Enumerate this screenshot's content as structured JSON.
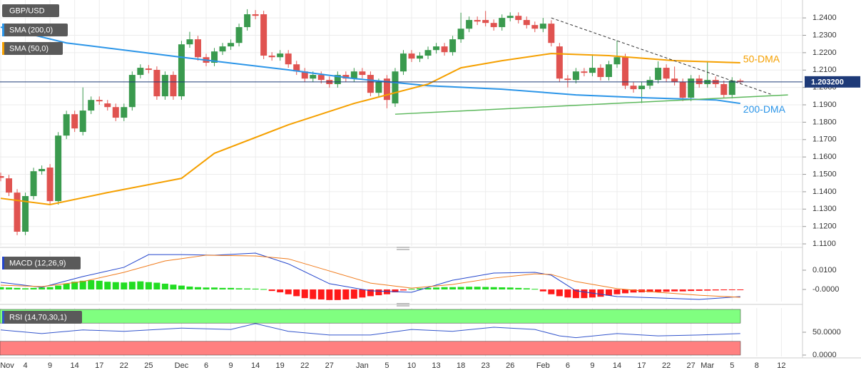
{
  "chart_data": [
    {
      "type": "candlestick",
      "title": "GBP/USD",
      "categories": [
        "Nov",
        null,
        null,
        "4",
        null,
        null,
        "9",
        null,
        null,
        "14",
        null,
        null,
        "17",
        null,
        null,
        "22",
        null,
        null,
        "25",
        null,
        null,
        null,
        "Dec",
        null,
        null,
        "6",
        null,
        null,
        "9",
        null,
        null,
        "14",
        null,
        null,
        "19",
        null,
        null,
        "22",
        null,
        null,
        "27",
        null,
        null,
        null,
        "Jan",
        null,
        null,
        "5",
        null,
        null,
        "10",
        null,
        null,
        "13",
        null,
        null,
        "18",
        null,
        null,
        "23",
        null,
        null,
        "26",
        null,
        null,
        null,
        "Feb",
        null,
        null,
        "6",
        null,
        null,
        "9",
        null,
        null,
        "14",
        null,
        null,
        "17",
        null,
        null,
        "22",
        null,
        null,
        "27",
        null,
        "Mar",
        null,
        null,
        "5",
        null,
        null,
        "8",
        null,
        null,
        "12"
      ],
      "open": [
        1.149,
        1.1477,
        1.1395,
        1.117,
        1.1375,
        1.1518,
        1.1539,
        1.1346,
        1.1723,
        1.1846,
        1.1744,
        1.1867,
        1.1928,
        1.1908,
        1.1887,
        1.1826,
        1.1887,
        1.2072,
        1.2109,
        1.2101,
        1.1949,
        1.2072,
        1.1949,
        1.2248,
        1.2277,
        1.2174,
        1.2142,
        1.2207,
        1.2236,
        1.2256,
        1.2347,
        1.2421,
        1.2421,
        1.2183,
        1.2174,
        1.2195,
        1.2133,
        1.2092,
        1.2051,
        1.2072,
        1.2043,
        1.2019,
        1.2072,
        1.2051,
        1.2092,
        1.2072,
        1.1969,
        1.2051,
        1.1908,
        1.2092,
        1.2195,
        1.2166,
        1.2183,
        1.2215,
        1.2236,
        1.2203,
        1.2277,
        1.2338,
        1.2388,
        1.2388,
        1.2371,
        1.2347,
        1.24,
        1.2412,
        1.2388,
        1.2359,
        1.2338,
        1.2367,
        1.2236,
        1.2051,
        1.2043,
        1.2092,
        1.2084,
        1.2113,
        1.206,
        1.2133,
        1.2174,
        1.201,
        1.199,
        1.201,
        1.2043,
        1.2113,
        1.2051,
        1.2031,
        1.1941,
        1.2051,
        1.2019,
        1.2043,
        1.2019,
        1.1957,
        1.2039,
        null,
        null,
        null,
        null,
        null
      ],
      "high": [
        1.151,
        1.1497,
        1.1415,
        1.1395,
        1.1538,
        1.1551,
        1.1559,
        1.1743,
        1.1866,
        1.1866,
        1.2,
        1.1948,
        1.1948,
        1.1928,
        1.1907,
        1.1907,
        1.2092,
        1.2133,
        1.2129,
        1.2121,
        1.2092,
        1.2092,
        1.2268,
        1.232,
        1.2297,
        1.2194,
        1.2227,
        1.2256,
        1.2276,
        1.2367,
        1.245,
        1.2445,
        1.2441,
        1.2203,
        1.2215,
        1.2215,
        1.2153,
        1.2112,
        1.2092,
        1.2092,
        1.2063,
        1.2092,
        1.2092,
        1.2112,
        1.2112,
        1.2092,
        1.2051,
        1.2071,
        1.2112,
        1.2215,
        1.2215,
        1.2203,
        1.2235,
        1.2256,
        1.2256,
        1.2297,
        1.243,
        1.2408,
        1.2408,
        1.244,
        1.2391,
        1.242,
        1.2432,
        1.2432,
        1.2408,
        1.2379,
        1.24,
        1.2387,
        1.2256,
        1.2071,
        1.2112,
        1.2112,
        1.219,
        1.2133,
        1.2153,
        1.227,
        1.2194,
        1.203,
        1.203,
        1.2063,
        1.215,
        1.2133,
        1.212,
        1.2051,
        1.2071,
        1.2071,
        1.215,
        1.2063,
        1.2039,
        1.2059,
        1.205,
        null,
        null,
        null,
        null,
        null
      ],
      "low": [
        1.146,
        1.1375,
        1.115,
        1.115,
        1.1355,
        1.1498,
        1.1326,
        1.1326,
        1.1703,
        1.1744,
        1.1724,
        1.1847,
        1.19,
        1.1867,
        1.1806,
        1.1806,
        1.1867,
        1.2052,
        1.2081,
        1.1929,
        1.1929,
        1.1929,
        1.1929,
        1.2228,
        1.2154,
        1.2122,
        1.2122,
        1.2187,
        1.2216,
        1.2236,
        1.2327,
        1.2392,
        1.2163,
        1.2154,
        1.2154,
        1.2113,
        1.2072,
        1.2031,
        1.2031,
        1.2023,
        1.1999,
        1.1999,
        1.2031,
        1.2031,
        1.2052,
        1.1949,
        1.1949,
        1.188,
        1.1888,
        1.2072,
        1.2146,
        1.2146,
        1.2163,
        1.2195,
        1.2183,
        1.2183,
        1.2257,
        1.2318,
        1.2359,
        1.2351,
        1.2327,
        1.2327,
        1.238,
        1.2368,
        1.2339,
        1.2318,
        1.2318,
        1.2236,
        1.2031,
        1.2,
        1.2023,
        1.2064,
        1.2064,
        1.204,
        1.204,
        1.2113,
        1.199,
        1.197,
        1.191,
        1.199,
        1.2023,
        1.2031,
        1.2011,
        1.1921,
        1.1921,
        1.1999,
        1.1999,
        1.1999,
        1.1937,
        1.1937,
        1.202,
        null,
        null,
        null,
        null,
        null
      ],
      "close": [
        1.148,
        1.1395,
        1.117,
        1.1375,
        1.1518,
        1.1531,
        1.1346,
        1.1723,
        1.1846,
        1.1764,
        1.1867,
        1.1928,
        1.192,
        1.1887,
        1.1826,
        1.1887,
        1.2072,
        1.2113,
        1.2101,
        1.1949,
        1.2072,
        1.1949,
        1.2248,
        1.2277,
        1.2174,
        1.2142,
        1.2207,
        1.2236,
        1.2256,
        1.2347,
        1.2421,
        1.2412,
        1.2183,
        1.2174,
        1.2195,
        1.2133,
        1.2092,
        1.2051,
        1.2072,
        1.2043,
        1.2019,
        1.2072,
        1.2051,
        1.2092,
        1.2072,
        1.1969,
        1.2031,
        1.1928,
        1.2092,
        1.2195,
        1.2166,
        1.2183,
        1.2215,
        1.2236,
        1.2203,
        1.2277,
        1.2338,
        1.2388,
        1.2379,
        1.2371,
        1.2347,
        1.24,
        1.2412,
        1.2388,
        1.2359,
        1.2338,
        1.2367,
        1.2256,
        1.2051,
        1.2043,
        1.2092,
        1.2084,
        1.2113,
        1.206,
        1.2133,
        1.2174,
        1.201,
        1.199,
        1.201,
        1.2043,
        1.2113,
        1.2051,
        1.2031,
        1.1941,
        1.2051,
        1.2019,
        1.2043,
        1.2019,
        1.1957,
        1.2039,
        1.2032,
        null,
        null,
        null,
        null,
        null
      ],
      "up_color": "#3a9a4e",
      "down_color": "#e05350",
      "ylim": [
        1.1088,
        1.2503
      ],
      "yticks": [
        {
          "value": 1.11,
          "label": "1.1100"
        },
        {
          "value": 1.12,
          "label": "1.1200"
        },
        {
          "value": 1.13,
          "label": "1.1300"
        },
        {
          "value": 1.14,
          "label": "1.1400"
        },
        {
          "value": 1.15,
          "label": "1.1500"
        },
        {
          "value": 1.16,
          "label": "1.1600"
        },
        {
          "value": 1.17,
          "label": "1.1700"
        },
        {
          "value": 1.18,
          "label": "1.1800"
        },
        {
          "value": 1.19,
          "label": "1.1900"
        },
        {
          "value": 1.2,
          "label": "1.2000"
        },
        {
          "value": 1.21,
          "label": "1.2100"
        },
        {
          "value": 1.22,
          "label": "1.2200"
        },
        {
          "value": 1.23,
          "label": "1.2300"
        },
        {
          "value": 1.24,
          "label": "1.2400"
        }
      ],
      "grid": true,
      "series": [
        {
          "name": "SMA (200,0)",
          "label": "200-DMA",
          "color": "#2b95e8",
          "x": [
            0,
            8,
            22,
            35,
            43,
            52,
            61,
            70,
            78,
            87,
            90
          ],
          "values": [
            1.2347,
            1.2256,
            1.2174,
            1.2101,
            1.2051,
            1.201,
            1.199,
            1.1957,
            1.1941,
            1.1928,
            1.1908
          ]
        },
        {
          "name": "SMA (50,0)",
          "label": "50-DMA",
          "color": "#f5a000",
          "x": [
            0,
            6,
            13,
            22,
            26,
            35,
            43,
            52,
            56,
            61,
            67,
            74,
            82,
            90
          ],
          "values": [
            1.1362,
            1.1326,
            1.1395,
            1.1477,
            1.1621,
            1.1785,
            1.1908,
            1.2019,
            1.2113,
            1.2154,
            1.2195,
            1.2183,
            1.2154,
            1.2142
          ]
        }
      ],
      "trendlines": [
        {
          "color": "#333333",
          "dashed": true,
          "x": [
            67,
            93.7
          ],
          "values": [
            1.24,
            1.1961
          ]
        },
        {
          "color": "#5cb85c",
          "dashed": false,
          "x": [
            48,
            95.8
          ],
          "values": [
            1.1846,
            1.1957
          ]
        }
      ],
      "last": {
        "value": 1.2032,
        "label": "1.203200",
        "color": "#1e3a78"
      }
    },
    {
      "type": "macd",
      "title": "MACD (12,26,9)",
      "histogram": [
        0.0012,
        0.001,
        0.0008,
        0.0006,
        0.0008,
        0.001,
        0.0012,
        0.002,
        0.003,
        0.004,
        0.0045,
        0.0048,
        0.0045,
        0.004,
        0.0038,
        0.0036,
        0.004,
        0.0042,
        0.0038,
        0.0035,
        0.003,
        0.0025,
        0.002,
        0.0015,
        0.0012,
        0.001,
        0.001,
        0.0008,
        0.0008,
        0.0006,
        0.0005,
        0.0004,
        0.0002,
        -0.0008,
        -0.0015,
        -0.0025,
        -0.0035,
        -0.0045,
        -0.005,
        -0.0052,
        -0.0055,
        -0.0055,
        -0.0052,
        -0.0048,
        -0.0042,
        -0.0035,
        -0.003,
        -0.0025,
        -0.0015,
        -0.0005,
        0.0003,
        0.0006,
        0.0008,
        0.001,
        0.0012,
        0.0012,
        0.0013,
        0.0014,
        0.0014,
        0.0013,
        0.0012,
        0.0011,
        0.001,
        0.0008,
        0.0006,
        0.0003,
        -0.001,
        -0.0025,
        -0.0035,
        -0.0042,
        -0.0045,
        -0.0045,
        -0.0042,
        -0.0038,
        -0.0032,
        -0.0025,
        -0.002,
        -0.0016,
        -0.0015,
        -0.0014,
        -0.0013,
        -0.0012,
        -0.001,
        -0.001,
        -0.0008,
        -0.0007,
        -0.0006,
        -0.0005,
        -0.0004,
        -0.0002,
        -0.0001,
        null,
        null,
        null,
        null,
        null
      ],
      "up_color": "#22dd22",
      "down_color": "#ff1a1a",
      "series": [
        {
          "color": "#2244cc",
          "x": [
            0,
            5,
            10,
            15,
            18,
            22,
            26,
            31,
            35,
            40,
            45,
            50,
            55,
            60,
            65,
            67,
            70,
            75,
            80,
            85,
            90
          ],
          "values": [
            0.0037,
            0.0011,
            0.0067,
            0.0115,
            0.0181,
            0.0181,
            0.0178,
            0.0189,
            0.0133,
            0.003,
            -0.0007,
            -0.0015,
            0.0048,
            0.0085,
            0.0089,
            0.0074,
            -0.0007,
            -0.0037,
            -0.0044,
            -0.0052,
            -0.0037
          ]
        },
        {
          "color": "#f07a1a",
          "x": [
            0,
            5,
            10,
            15,
            20,
            25,
            31,
            35,
            40,
            45,
            50,
            55,
            60,
            65,
            67,
            70,
            75,
            80,
            85,
            90
          ],
          "values": [
            0.0022,
            0.0015,
            0.0041,
            0.0089,
            0.0148,
            0.0178,
            0.0174,
            0.0159,
            0.0096,
            0.0033,
            0.0007,
            0.0026,
            0.0059,
            0.0081,
            0.0078,
            0.0041,
            0.0004,
            -0.0015,
            -0.003,
            -0.0041
          ]
        }
      ],
      "ylim": [
        -0.0063,
        0.02
      ],
      "yticks": [
        {
          "value": 0.01,
          "label": "0.0100"
        },
        {
          "value": 0,
          "label": "-0.0000"
        }
      ]
    },
    {
      "type": "line",
      "title": "RSI (14,70,30,1)",
      "bands": [
        {
          "from": 70,
          "to": 100,
          "color": "#80ff80"
        },
        {
          "from": 0,
          "to": 30,
          "color": "#ff8080"
        }
      ],
      "series": [
        {
          "color": "#3355cc",
          "x": [
            0,
            5,
            10,
            15,
            22,
            28,
            31,
            35,
            40,
            45,
            50,
            55,
            60,
            65,
            68,
            70,
            75,
            80,
            85,
            90
          ],
          "values": [
            55,
            47,
            55,
            52,
            59,
            56,
            69,
            52,
            44,
            44,
            56,
            52,
            61,
            56,
            42,
            38,
            47,
            42,
            44,
            47
          ]
        }
      ],
      "ylim": [
        -3.1,
        103.1
      ],
      "yticks": [
        {
          "value": 50,
          "label": "50.0000"
        },
        {
          "value": 0,
          "label": "0.0000"
        }
      ]
    }
  ]
}
